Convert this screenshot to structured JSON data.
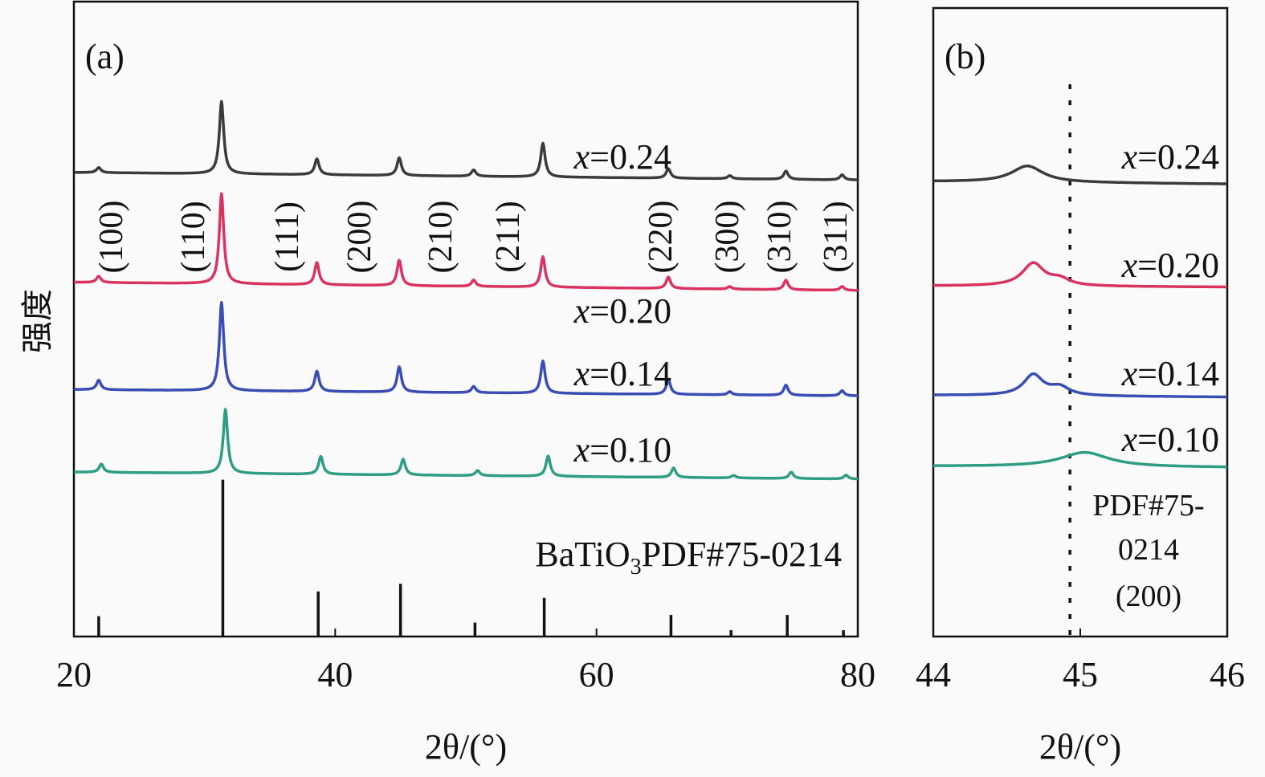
{
  "chart_data": [
    {
      "type": "line",
      "panel_label": "(a)",
      "xlabel": "2θ/(°)",
      "ylabel": "强度",
      "xlim": [
        20,
        80
      ],
      "ylim": [
        0,
        100
      ],
      "y_units": "arbitrary (offset stacked)",
      "xticks": [
        "20",
        "40",
        "60",
        "80"
      ],
      "xtick_values": [
        20,
        40,
        60,
        80
      ],
      "grid": false,
      "hkl_labels": [
        "(100)",
        "(110)",
        "(111)",
        "(200)",
        "(210)",
        "(211)",
        "(220)",
        "(300)",
        "(310)",
        "(311)"
      ],
      "reference": {
        "label_main": "BaTiO",
        "label_sub": "3",
        "label_rest": "PDF#75-0214",
        "two_theta": [
          21.9,
          31.4,
          38.7,
          45.0,
          50.7,
          56.0,
          65.7,
          70.3,
          74.6,
          78.9
        ],
        "intensity": [
          3.2,
          24.7,
          7.1,
          8.3,
          2.2,
          6.1,
          3.4,
          1.0,
          3.4,
          1.0
        ]
      },
      "series": [
        {
          "name": "x=0.24",
          "color": "#3b3b3b",
          "baseline": [
            73.1,
            71.9
          ],
          "two_theta": [
            21.9,
            31.3,
            38.6,
            44.9,
            50.6,
            55.9,
            65.5,
            70.2,
            74.5,
            78.8
          ],
          "intensity": [
            0.8,
            11.4,
            2.5,
            2.8,
            1.0,
            5.3,
            1.5,
            0.5,
            1.3,
            0.8
          ]
        },
        {
          "name": "x=0.20",
          "color": "#d8345f",
          "baseline": [
            55.8,
            54.5
          ],
          "two_theta": [
            21.9,
            31.3,
            38.6,
            44.9,
            50.6,
            55.9,
            65.5,
            70.2,
            74.5,
            78.8
          ],
          "intensity": [
            1.0,
            14.2,
            3.5,
            4.0,
            1.0,
            4.8,
            1.8,
            0.4,
            1.5,
            0.6
          ]
        },
        {
          "name": "x=0.14",
          "color": "#3a4db5",
          "baseline": [
            38.9,
            37.9
          ],
          "two_theta": [
            21.9,
            31.3,
            38.6,
            44.9,
            50.6,
            55.9,
            65.5,
            70.2,
            74.5,
            78.8
          ],
          "intensity": [
            1.5,
            13.9,
            3.2,
            4.0,
            1.0,
            5.1,
            2.3,
            0.5,
            1.6,
            0.8
          ]
        },
        {
          "name": "x=0.10",
          "color": "#2f9d84",
          "baseline": [
            25.9,
            24.8
          ],
          "two_theta": [
            22.1,
            31.6,
            38.9,
            45.2,
            50.9,
            56.3,
            65.9,
            70.5,
            74.9,
            79.1
          ],
          "intensity": [
            1.3,
            10.1,
            2.8,
            2.5,
            0.8,
            3.2,
            1.5,
            0.4,
            1.0,
            0.6
          ]
        }
      ]
    },
    {
      "type": "line",
      "panel_label": "(b)",
      "xlabel": "2θ/(°)",
      "xlim": [
        44,
        46
      ],
      "ylim": [
        0,
        100
      ],
      "xticks": [
        "44",
        "45",
        "46"
      ],
      "xtick_values": [
        44,
        45,
        46
      ],
      "grid": false,
      "reference_line": {
        "two_theta": 44.93,
        "style": "dotted",
        "label_lines": [
          "PDF#75-",
          "0214",
          "(200)"
        ]
      },
      "series": [
        {
          "name": "x=0.24",
          "color": "#3b3b3b",
          "baseline": [
            72.4,
            72.0
          ],
          "two_theta": [
            44.64
          ],
          "intensity": [
            2.6
          ],
          "width": [
            0.13
          ]
        },
        {
          "name": "x=0.20",
          "color": "#d8345f",
          "baseline": [
            55.8,
            55.6
          ],
          "two_theta": [
            44.68,
            44.86
          ],
          "intensity": [
            3.6,
            1.0
          ],
          "width": [
            0.09,
            0.08
          ]
        },
        {
          "name": "x=0.14",
          "color": "#3a4db5",
          "baseline": [
            38.4,
            38.1
          ],
          "two_theta": [
            44.68,
            44.86
          ],
          "intensity": [
            3.3,
            1.3
          ],
          "width": [
            0.08,
            0.08
          ]
        },
        {
          "name": "x=0.10",
          "color": "#2f9d84",
          "baseline": [
            27.1,
            26.9
          ],
          "two_theta": [
            45.03
          ],
          "intensity": [
            2.3
          ],
          "width": [
            0.2
          ]
        }
      ]
    }
  ]
}
